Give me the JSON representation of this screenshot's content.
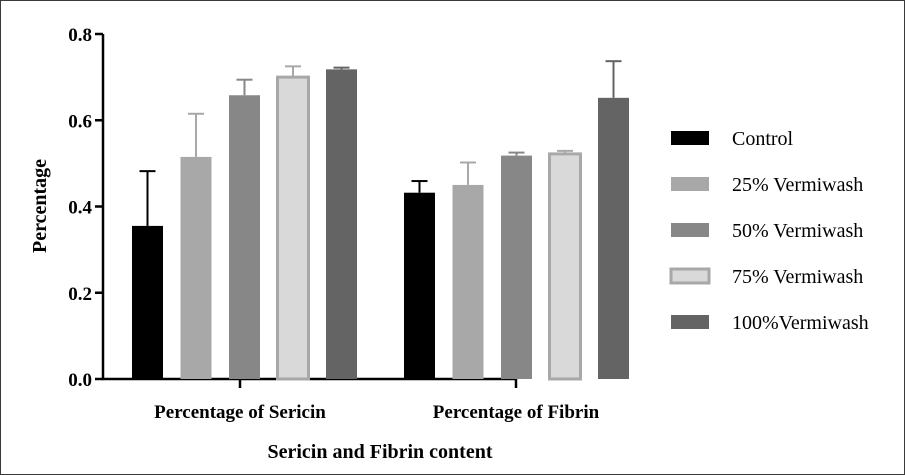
{
  "chart_data": {
    "type": "bar",
    "title": "",
    "xlabel": "Sericin and Fibrin content",
    "ylabel": "Percentage",
    "ylim": [
      0,
      0.8
    ],
    "yticks": [
      "0.0",
      "0.2",
      "0.4",
      "0.6",
      "0.8"
    ],
    "grid": false,
    "legend_position": "right",
    "categories": [
      "Percentage of Sericin",
      "Percentage of Fibrin"
    ],
    "series": [
      {
        "name": "Control",
        "color": "#000000",
        "values": [
          0.355,
          0.432
        ],
        "errors": [
          0.127,
          0.027
        ]
      },
      {
        "name": "25% Vermiwash",
        "color": "#a8a8a8",
        "values": [
          0.515,
          0.45
        ],
        "errors": [
          0.1,
          0.052
        ]
      },
      {
        "name": "50% Vermiwash",
        "color": "#878787",
        "values": [
          0.658,
          0.518
        ],
        "errors": [
          0.036,
          0.007
        ]
      },
      {
        "name": "75% Vermiwash",
        "color": "#d9d9d9",
        "values": [
          0.7,
          0.522
        ],
        "errors": [
          0.025,
          0.007
        ]
      },
      {
        "name": "100%Vermiwash",
        "color": "#646464",
        "values": [
          0.718,
          0.652
        ],
        "errors": [
          0.004,
          0.085
        ]
      }
    ]
  }
}
